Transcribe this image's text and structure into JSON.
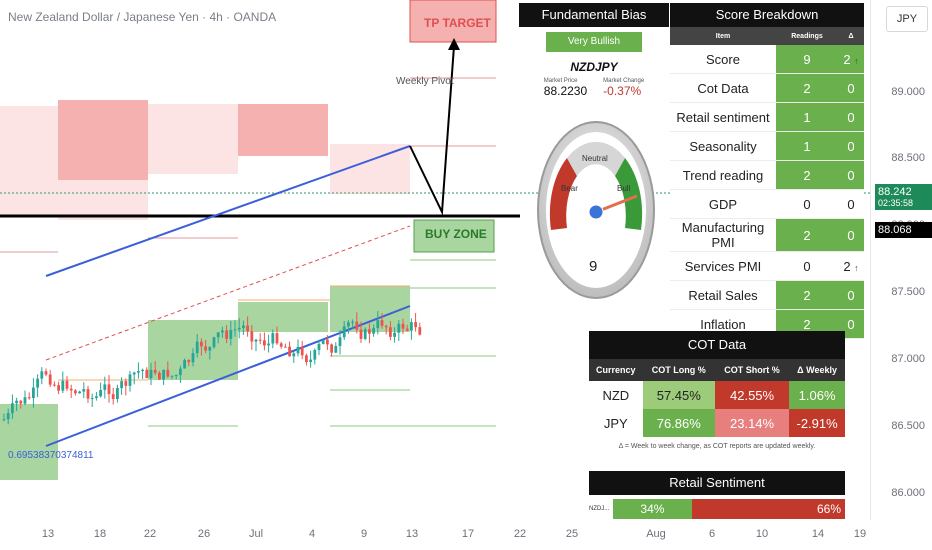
{
  "chart": {
    "title": "New Zealand Dollar / Japanese Yen · 4h · OANDA",
    "currency_badge": "JPY",
    "y_ticks": [
      "89.000",
      "88.500",
      "88.000",
      "87.500",
      "87.000",
      "86.500",
      "86.000"
    ],
    "x_ticks": [
      "13",
      "18",
      "22",
      "26",
      "Jul",
      "4",
      "9",
      "13",
      "17",
      "22",
      "25",
      "Aug",
      "6",
      "10",
      "14",
      "19"
    ],
    "current_price": "88.242",
    "countdown": "02:35:58",
    "line_price": "88.068",
    "tp_label": "TP TARGET",
    "buy_label": "BUY ZONE",
    "weekly_pivot_label": "Weekly Pivot",
    "fib_label": "0.69538370374811",
    "colors": {
      "accent_green": "#6ab04c",
      "accent_red": "#e05050",
      "current_tag": "#1e8a5a"
    }
  },
  "fundamental": {
    "title": "Fundamental Bias",
    "bias": "Very Bullish",
    "symbol": "NZDJPY",
    "market_price_label": "Market Price",
    "market_price": "88.2230",
    "market_change_label": "Market Change",
    "market_change": "-0.37%"
  },
  "gauge": {
    "value": "9",
    "neutral": "Neutral",
    "bear": "Bear",
    "bull": "Bull",
    "plus_bear": "+ Bear",
    "plus_bull": "+ Bull"
  },
  "score_breakdown": {
    "title": "Score Breakdown",
    "headers": [
      "Item",
      "Readings",
      "Δ"
    ],
    "rows": [
      {
        "item": "Score",
        "reading": "9",
        "delta": "2"
      },
      {
        "item": "Cot Data",
        "reading": "2",
        "delta": "0"
      },
      {
        "item": "Retail sentiment",
        "reading": "1",
        "delta": "0"
      },
      {
        "item": "Seasonality",
        "reading": "1",
        "delta": "0"
      },
      {
        "item": "Trend reading",
        "reading": "2",
        "delta": "0"
      },
      {
        "item": "GDP",
        "reading": "0",
        "delta": "0"
      },
      {
        "item": "Manufacturing PMI",
        "reading": "2",
        "delta": "0"
      },
      {
        "item": "Services PMI",
        "reading": "0",
        "delta": "2"
      },
      {
        "item": "Retail Sales",
        "reading": "2",
        "delta": "0"
      },
      {
        "item": "Inflation",
        "reading": "2",
        "delta": "0"
      }
    ]
  },
  "cot_data": {
    "title": "COT Data",
    "headers": [
      "Currency",
      "COT Long %",
      "COT Short %",
      "Δ Weekly"
    ],
    "rows": [
      {
        "currency": "NZD",
        "long": "57.45%",
        "short": "42.55%",
        "weekly": "1.06%"
      },
      {
        "currency": "JPY",
        "long": "76.86%",
        "short": "23.14%",
        "weekly": "-2.91%"
      }
    ],
    "note": "Δ = Week to week change, as COT reports are updated weekly."
  },
  "retail_sentiment": {
    "title": "Retail Sentiment",
    "symbol": "NZDJ...",
    "long": "34%",
    "short": "66%",
    "long_fraction": 0.34
  }
}
